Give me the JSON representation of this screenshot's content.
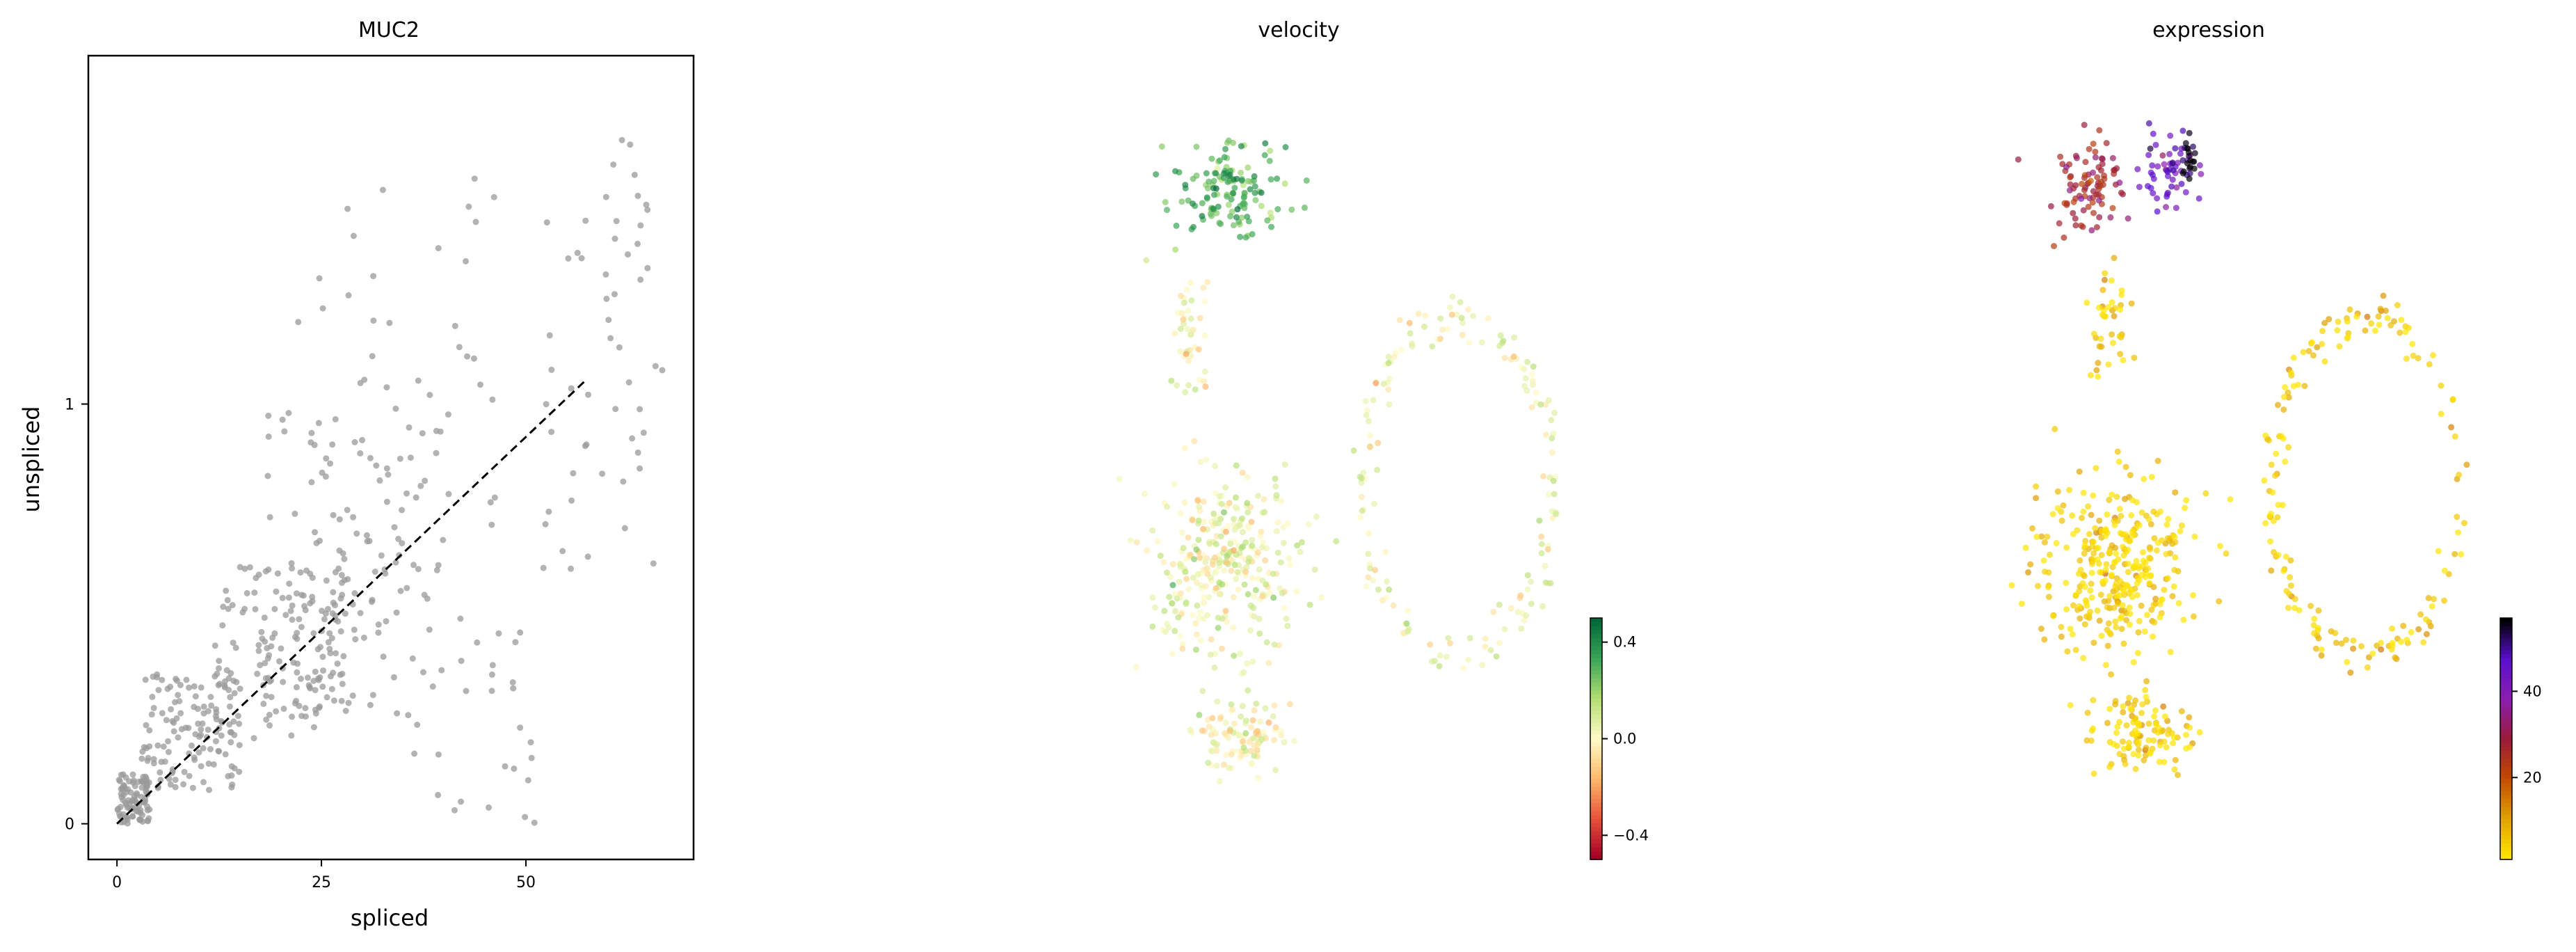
{
  "chart_data": [
    {
      "type": "scatter",
      "title": "MUC2",
      "xlabel": "spliced",
      "ylabel": "unspliced",
      "x_ticks": [
        0,
        25,
        50
      ],
      "y_ticks": [
        0,
        1
      ],
      "xlim": [
        -3.5,
        70.5
      ],
      "ylim": [
        -0.085,
        1.83
      ],
      "grid": false,
      "point_color": "#9a9a9a",
      "trend_line": {
        "style": "dashed",
        "color": "#000000",
        "from": [
          0,
          0
        ],
        "to": [
          57.5,
          1.06
        ]
      },
      "clusters": [
        {
          "x_range": [
            0,
            4
          ],
          "y_range": [
            0,
            0.12
          ],
          "count": 90
        },
        {
          "x_range": [
            3,
            15
          ],
          "y_range": [
            0.08,
            0.36
          ],
          "count": 130
        },
        {
          "x_range": [
            12,
            28
          ],
          "y_range": [
            0.2,
            0.62
          ],
          "count": 140
        },
        {
          "x_range": [
            18,
            40
          ],
          "y_range": [
            0.25,
            1.0
          ],
          "count": 110
        },
        {
          "x_range": [
            22,
            48
          ],
          "y_range": [
            0.6,
            1.55
          ],
          "count": 50
        },
        {
          "x_range": [
            36,
            52
          ],
          "y_range": [
            0.0,
            0.5
          ],
          "count": 30
        },
        {
          "x_range": [
            52,
            67
          ],
          "y_range": [
            0.6,
            1.65
          ],
          "count": 55
        }
      ]
    },
    {
      "type": "scatter",
      "title": "velocity",
      "colorbar": {
        "range": [
          -0.5,
          0.5
        ],
        "ticks": [
          0.4,
          0.0,
          -0.4
        ],
        "tick_labels": [
          "0.4",
          "0.0",
          "−0.4"
        ],
        "colors": [
          "#a50026",
          "#e8543b",
          "#fdba6b",
          "#fffbc7",
          "#b3df72",
          "#3aa657",
          "#006837"
        ]
      },
      "clusters": [
        {
          "center": [
            0.37,
            0.14
          ],
          "spread": [
            0.1,
            0.06
          ],
          "count": 140,
          "value": 0.3
        },
        {
          "center": [
            0.3,
            0.33
          ],
          "spread": [
            0.04,
            0.09
          ],
          "count": 45,
          "value": 0.02
        },
        {
          "center": [
            0.36,
            0.65
          ],
          "spread": [
            0.14,
            0.12
          ],
          "count": 330,
          "value": 0.04
        },
        {
          "center": [
            0.4,
            0.88
          ],
          "spread": [
            0.08,
            0.06
          ],
          "count": 110,
          "value": 0.01
        },
        {
          "ring_center": [
            0.78,
            0.54
          ],
          "ring_radius": [
            0.17,
            0.23
          ],
          "count": 170,
          "value": 0.02
        }
      ]
    },
    {
      "type": "scatter",
      "title": "expression",
      "colorbar": {
        "range": [
          1,
          57
        ],
        "ticks": [
          20,
          40
        ],
        "tick_labels": [
          "20",
          "40"
        ],
        "colors": [
          "#ffe600",
          "#e0a000",
          "#c24a00",
          "#9a1a3a",
          "#8a1fb0",
          "#5a0fd0",
          "#000000"
        ]
      },
      "clusters": [
        {
          "center": [
            0.28,
            0.14
          ],
          "spread": [
            0.07,
            0.07
          ],
          "count": 90,
          "value": 28
        },
        {
          "center": [
            0.42,
            0.11
          ],
          "spread": [
            0.05,
            0.06
          ],
          "count": 55,
          "value": 44
        },
        {
          "center": [
            0.46,
            0.1
          ],
          "spread": [
            0.015,
            0.04
          ],
          "count": 20,
          "value": 56
        },
        {
          "center": [
            0.32,
            0.32
          ],
          "spread": [
            0.04,
            0.08
          ],
          "count": 40,
          "value": 4
        },
        {
          "center": [
            0.33,
            0.65
          ],
          "spread": [
            0.14,
            0.12
          ],
          "count": 330,
          "value": 3
        },
        {
          "center": [
            0.38,
            0.88
          ],
          "spread": [
            0.08,
            0.06
          ],
          "count": 110,
          "value": 3
        },
        {
          "ring_center": [
            0.78,
            0.54
          ],
          "ring_radius": [
            0.17,
            0.23
          ],
          "count": 170,
          "value": 4
        }
      ]
    }
  ]
}
